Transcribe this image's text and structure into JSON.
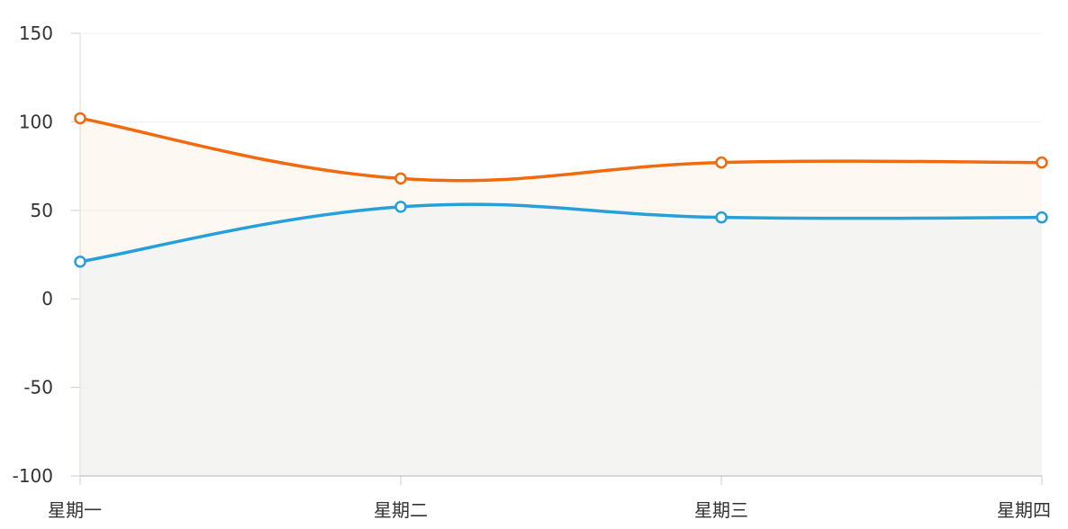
{
  "chart_data": {
    "type": "area",
    "categories": [
      "星期一",
      "星期二",
      "星期三",
      "星期四"
    ],
    "series": [
      {
        "values": [
          102,
          68,
          77,
          77
        ],
        "color": "#f26a10",
        "fill": "#fdf8f2"
      },
      {
        "values": [
          21,
          52,
          46,
          46
        ],
        "color": "#26a0da",
        "fill": "#f4f4f2"
      }
    ],
    "ylim": [
      -100,
      150
    ],
    "yticks": [
      150,
      100,
      50,
      0,
      -50,
      -100
    ],
    "grid": true,
    "title": "",
    "xlabel": "",
    "ylabel": ""
  }
}
